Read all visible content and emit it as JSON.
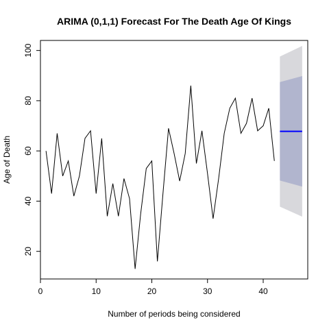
{
  "chart_data": {
    "type": "line",
    "title": "ARIMA (0,1,1) Forecast For The Death Age Of Kings",
    "xlabel": "Number of periods being considered",
    "ylabel": "Age of Death",
    "xlim": [
      0,
      48
    ],
    "ylim": [
      9,
      104
    ],
    "x_ticks": [
      0,
      10,
      20,
      30,
      40
    ],
    "y_ticks": [
      20,
      40,
      60,
      80,
      100
    ],
    "grid": false,
    "legend": "none",
    "observed": {
      "x": [
        1,
        2,
        3,
        4,
        5,
        6,
        7,
        8,
        9,
        10,
        11,
        12,
        13,
        14,
        15,
        16,
        17,
        18,
        19,
        20,
        21,
        22,
        23,
        24,
        25,
        26,
        27,
        28,
        29,
        30,
        31,
        32,
        33,
        34,
        35,
        36,
        37,
        38,
        39,
        40,
        41,
        42
      ],
      "y": [
        60,
        43,
        67,
        50,
        56,
        42,
        50,
        65,
        68,
        43,
        65,
        34,
        47,
        34,
        49,
        41,
        13,
        35,
        53,
        56,
        16,
        43,
        69,
        59,
        48,
        59,
        86,
        55,
        68,
        51,
        33,
        49,
        67,
        77,
        81,
        67,
        71,
        81,
        68,
        70,
        77,
        56
      ]
    },
    "forecast": {
      "x": [
        43,
        47
      ],
      "mean": [
        67.8,
        67.8
      ],
      "lower80": [
        48.2,
        45.8
      ],
      "upper80": [
        87.4,
        89.8
      ],
      "lower95": [
        37.8,
        33.8
      ],
      "upper95": [
        97.6,
        101.8
      ]
    },
    "colors": {
      "observed_line": "#000000",
      "forecast_line": "#0000ff",
      "band80": "#b1b5ce",
      "band95": "#d8d8dc",
      "axis": "#000000"
    }
  }
}
